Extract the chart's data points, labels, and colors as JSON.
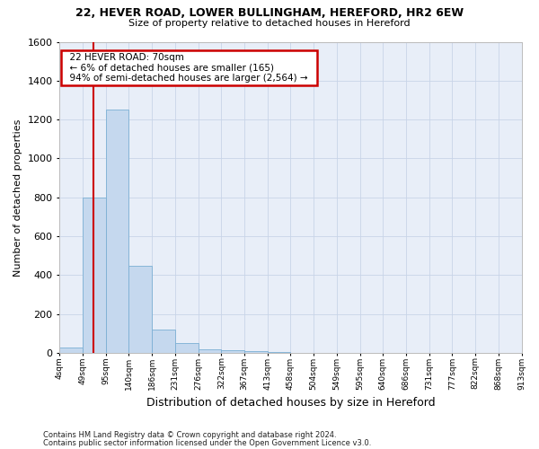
{
  "title_line1": "22, HEVER ROAD, LOWER BULLINGHAM, HEREFORD, HR2 6EW",
  "title_line2": "Size of property relative to detached houses in Hereford",
  "xlabel": "Distribution of detached houses by size in Hereford",
  "ylabel": "Number of detached properties",
  "footnote1": "Contains HM Land Registry data © Crown copyright and database right 2024.",
  "footnote2": "Contains public sector information licensed under the Open Government Licence v3.0.",
  "bin_labels": [
    "4sqm",
    "49sqm",
    "95sqm",
    "140sqm",
    "186sqm",
    "231sqm",
    "276sqm",
    "322sqm",
    "367sqm",
    "413sqm",
    "458sqm",
    "504sqm",
    "549sqm",
    "595sqm",
    "640sqm",
    "686sqm",
    "731sqm",
    "777sqm",
    "822sqm",
    "868sqm",
    "913sqm"
  ],
  "bar_values": [
    30,
    800,
    1250,
    450,
    120,
    50,
    20,
    15,
    10,
    3,
    0,
    0,
    0,
    0,
    0,
    0,
    0,
    0,
    0,
    0
  ],
  "bar_color": "#c5d8ee",
  "bar_edge_color": "#7bafd4",
  "annotation_text": "  22 HEVER ROAD: 70sqm  \n  ← 6% of detached houses are smaller (165)  \n  94% of semi-detached houses are larger (2,564) →  ",
  "annotation_box_color": "#ffffff",
  "annotation_box_edge": "#cc0000",
  "ylim": [
    0,
    1600
  ],
  "yticks": [
    0,
    200,
    400,
    600,
    800,
    1000,
    1200,
    1400,
    1600
  ],
  "grid_color": "#c8d4e8",
  "background_color": "#e8eef8"
}
